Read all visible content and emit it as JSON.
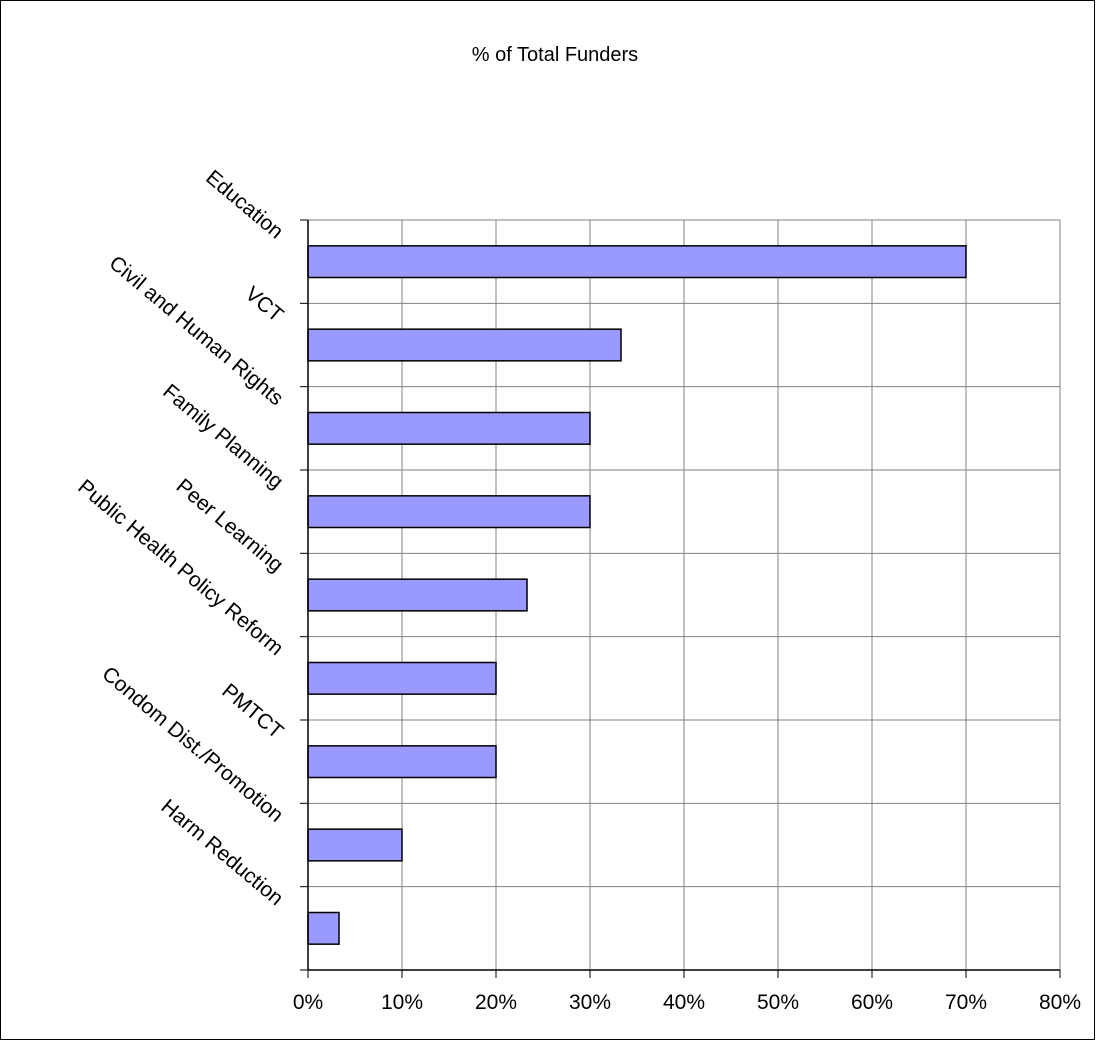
{
  "chart_data": {
    "type": "bar",
    "orientation": "horizontal",
    "title": "% of Total Funders",
    "xlabel": "",
    "ylabel": "",
    "categories": [
      "Education",
      "VCT",
      "Civil and Human Rights",
      "Family Planning",
      "Peer Learning",
      "Public Health Policy Reform",
      "PMTCT",
      "Condom Dist./Promotion",
      "Harm Reduction"
    ],
    "values": [
      70,
      33.3,
      30,
      30,
      23.3,
      20,
      20,
      10,
      3.3
    ],
    "xlim": [
      0,
      80
    ],
    "xticks": [
      "0%",
      "10%",
      "20%",
      "30%",
      "40%",
      "50%",
      "60%",
      "70%",
      "80%"
    ],
    "grid": true,
    "legend": "none",
    "bar_color": "#9999ff",
    "bar_edge_color": "#000000"
  }
}
